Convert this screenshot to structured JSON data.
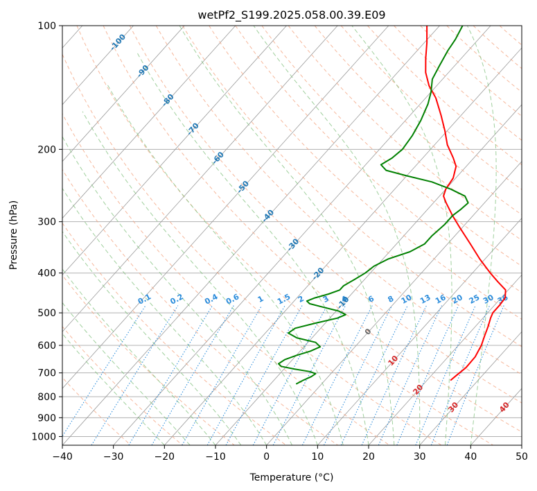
{
  "chart_data": {
    "type": "line",
    "diagram": "skew-t log-p",
    "title": "wetPf2_S199.2025.058.00.39.E09",
    "xlabel": "Temperature (°C)",
    "ylabel": "Pressure (hPa)",
    "xlim": [
      -40,
      50
    ],
    "ylim": [
      1050,
      100
    ],
    "y_scale": "log",
    "grid": true,
    "x_ticks": [
      -40,
      -30,
      -20,
      -10,
      0,
      10,
      20,
      30,
      40,
      50
    ],
    "x_tick_labels": [
      "−40",
      "−30",
      "−20",
      "−10",
      "0",
      "10",
      "20",
      "30",
      "40",
      "50"
    ],
    "y_ticks": [
      100,
      200,
      300,
      400,
      500,
      600,
      700,
      800,
      900,
      1000
    ],
    "y_tick_labels": [
      "100",
      "200",
      "300",
      "400",
      "500",
      "600",
      "700",
      "800",
      "900",
      "1000"
    ],
    "colors": {
      "temperature": "#ff0000",
      "dewpoint": "#008000",
      "isotherm": "#999999",
      "dry_adiabat": "#f4a582",
      "moist_adiabat": "#7fbf7b",
      "mixing_ratio": "#2b8cdb",
      "grid": "#b0b0b0"
    },
    "series": [
      {
        "name": "",
        "role": "temperature",
        "points": [
          {
            "p": 730,
            "t": 24.6
          },
          {
            "p": 710,
            "t": 24.9
          },
          {
            "p": 680,
            "t": 25.4
          },
          {
            "p": 640,
            "t": 25.3
          },
          {
            "p": 600,
            "t": 24.5
          },
          {
            "p": 570,
            "t": 23.5
          },
          {
            "p": 540,
            "t": 22.5
          },
          {
            "p": 515,
            "t": 21.5
          },
          {
            "p": 500,
            "t": 21.0
          },
          {
            "p": 480,
            "t": 21.0
          },
          {
            "p": 460,
            "t": 20.8
          },
          {
            "p": 440,
            "t": 19.5
          },
          {
            "p": 420,
            "t": 16.5
          },
          {
            "p": 400,
            "t": 13.5
          },
          {
            "p": 370,
            "t": 9.0
          },
          {
            "p": 340,
            "t": 4.5
          },
          {
            "p": 310,
            "t": -0.5
          },
          {
            "p": 290,
            "t": -4.0
          },
          {
            "p": 270,
            "t": -7.5
          },
          {
            "p": 260,
            "t": -9.2
          },
          {
            "p": 250,
            "t": -10.0
          },
          {
            "p": 235,
            "t": -10.5
          },
          {
            "p": 220,
            "t": -12.0
          },
          {
            "p": 210,
            "t": -14.0
          },
          {
            "p": 195,
            "t": -17.5
          },
          {
            "p": 180,
            "t": -20.5
          },
          {
            "p": 165,
            "t": -24.0
          },
          {
            "p": 150,
            "t": -28.0
          },
          {
            "p": 140,
            "t": -31.5
          },
          {
            "p": 130,
            "t": -34.5
          },
          {
            "p": 120,
            "t": -37.0
          },
          {
            "p": 110,
            "t": -39.5
          },
          {
            "p": 100,
            "t": -42.5
          }
        ]
      },
      {
        "name": "",
        "role": "dewpoint",
        "points": [
          {
            "p": 745,
            "t": -5.0
          },
          {
            "p": 730,
            "t": -4.3
          },
          {
            "p": 715,
            "t": -3.3
          },
          {
            "p": 703,
            "t": -3.0
          },
          {
            "p": 695,
            "t": -4.5
          },
          {
            "p": 685,
            "t": -8.0
          },
          {
            "p": 675,
            "t": -11.0
          },
          {
            "p": 665,
            "t": -12.0
          },
          {
            "p": 650,
            "t": -11.5
          },
          {
            "p": 635,
            "t": -10.0
          },
          {
            "p": 620,
            "t": -8.0
          },
          {
            "p": 605,
            "t": -6.8
          },
          {
            "p": 590,
            "t": -8.5
          },
          {
            "p": 575,
            "t": -13.0
          },
          {
            "p": 560,
            "t": -15.5
          },
          {
            "p": 545,
            "t": -15.0
          },
          {
            "p": 530,
            "t": -12.0
          },
          {
            "p": 515,
            "t": -8.5
          },
          {
            "p": 505,
            "t": -7.5
          },
          {
            "p": 495,
            "t": -9.5
          },
          {
            "p": 485,
            "t": -13.0
          },
          {
            "p": 475,
            "t": -16.5
          },
          {
            "p": 468,
            "t": -17.5
          },
          {
            "p": 460,
            "t": -16.5
          },
          {
            "p": 450,
            "t": -14.5
          },
          {
            "p": 440,
            "t": -13.0
          },
          {
            "p": 430,
            "t": -13.0
          },
          {
            "p": 415,
            "t": -12.0
          },
          {
            "p": 400,
            "t": -11.0
          },
          {
            "p": 385,
            "t": -10.5
          },
          {
            "p": 370,
            "t": -9.0
          },
          {
            "p": 355,
            "t": -6.0
          },
          {
            "p": 340,
            "t": -4.5
          },
          {
            "p": 325,
            "t": -4.5
          },
          {
            "p": 305,
            "t": -4.0
          },
          {
            "p": 290,
            "t": -4.0
          },
          {
            "p": 280,
            "t": -3.5
          },
          {
            "p": 270,
            "t": -3.2
          },
          {
            "p": 260,
            "t": -5.0
          },
          {
            "p": 250,
            "t": -9.0
          },
          {
            "p": 240,
            "t": -14.0
          },
          {
            "p": 232,
            "t": -20.0
          },
          {
            "p": 225,
            "t": -25.0
          },
          {
            "p": 218,
            "t": -27.0
          },
          {
            "p": 210,
            "t": -26.0
          },
          {
            "p": 200,
            "t": -25.5
          },
          {
            "p": 185,
            "t": -26.0
          },
          {
            "p": 170,
            "t": -27.0
          },
          {
            "p": 155,
            "t": -28.5
          },
          {
            "p": 145,
            "t": -30.0
          },
          {
            "p": 135,
            "t": -32.0
          },
          {
            "p": 125,
            "t": -33.0
          },
          {
            "p": 115,
            "t": -34.0
          },
          {
            "p": 108,
            "t": -34.5
          },
          {
            "p": 100,
            "t": -35.5
          }
        ]
      }
    ],
    "isotherm_labels": [
      {
        "text": "-100",
        "t": -100
      },
      {
        "text": "-90",
        "t": -90
      },
      {
        "text": "-80",
        "t": -80
      },
      {
        "text": "-70",
        "t": -70
      },
      {
        "text": "-60",
        "t": -60
      },
      {
        "text": "-50",
        "t": -50
      },
      {
        "text": "-40",
        "t": -40
      },
      {
        "text": "-30",
        "t": -30
      },
      {
        "text": "-20",
        "t": -20
      },
      {
        "text": "-10",
        "t": -10
      },
      {
        "text": "0",
        "t": 0
      },
      {
        "text": "10",
        "t": 10
      },
      {
        "text": "20",
        "t": 20
      },
      {
        "text": "30",
        "t": 30
      },
      {
        "text": "40",
        "t": 40
      }
    ],
    "mixing_ratio_labels": [
      {
        "text": "0.1",
        "w": 0.1
      },
      {
        "text": "0.2",
        "w": 0.2
      },
      {
        "text": "0.4",
        "w": 0.4
      },
      {
        "text": "0.6",
        "w": 0.6
      },
      {
        "text": "1",
        "w": 1
      },
      {
        "text": "1.5",
        "w": 1.5
      },
      {
        "text": "2",
        "w": 2
      },
      {
        "text": "3",
        "w": 3
      },
      {
        "text": "4",
        "w": 4
      },
      {
        "text": "6",
        "w": 6
      },
      {
        "text": "8",
        "w": 8
      },
      {
        "text": "10",
        "w": 10
      },
      {
        "text": "13",
        "w": 13
      },
      {
        "text": "16",
        "w": 16
      },
      {
        "text": "20",
        "w": 20
      },
      {
        "text": "25",
        "w": 25
      },
      {
        "text": "30",
        "w": 30
      },
      {
        "text": "36",
        "w": 36
      }
    ]
  }
}
